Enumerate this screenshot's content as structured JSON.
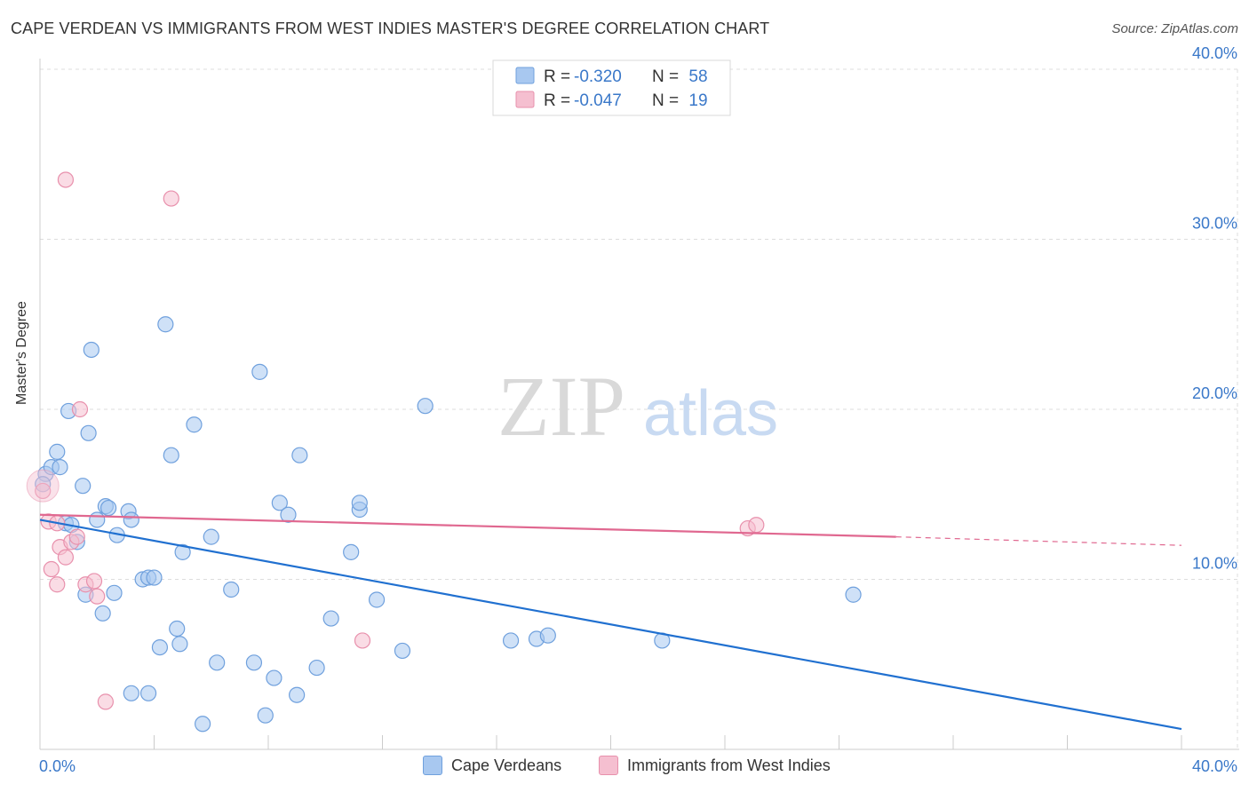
{
  "title": "CAPE VERDEAN VS IMMIGRANTS FROM WEST INDIES MASTER'S DEGREE CORRELATION CHART",
  "source": "Source: ZipAtlas.com",
  "watermark": {
    "zip": "ZIP",
    "atlas": "atlas"
  },
  "colors": {
    "blue_fill": "#a8c8f0",
    "blue_stroke": "#6fa0dd",
    "blue_line": "#2070d0",
    "pink_fill": "#f5bfd0",
    "pink_stroke": "#e890ac",
    "pink_line": "#e06890",
    "value_text": "#3a78c9",
    "axis_text": "#3a78c9",
    "grid": "#dddddd"
  },
  "legend_top": [
    {
      "r_label": "R =",
      "r_value": "-0.320",
      "n_label": "N =",
      "n_value": "58",
      "series": "blue"
    },
    {
      "r_label": "R =",
      "r_value": "-0.047",
      "n_label": "N =",
      "n_value": "19",
      "series": "pink"
    }
  ],
  "legend_bottom": [
    {
      "label": "Cape Verdeans",
      "series": "blue"
    },
    {
      "label": "Immigrants from West Indies",
      "series": "pink"
    }
  ],
  "chart_data": {
    "type": "scatter",
    "title": "CAPE VERDEAN VS IMMIGRANTS FROM WEST INDIES MASTER'S DEGREE CORRELATION CHART",
    "xlabel": "",
    "ylabel": "Master's Degree",
    "xlim": [
      0,
      40
    ],
    "ylim": [
      0,
      40
    ],
    "x_tick_labels": [
      "0.0%",
      "40.0%"
    ],
    "y_tick_labels": [
      "10.0%",
      "20.0%",
      "30.0%",
      "40.0%"
    ],
    "y_ticks": [
      10,
      20,
      30,
      40
    ],
    "grid": true,
    "series": [
      {
        "name": "Cape Verdeans",
        "color": "blue",
        "r": -0.32,
        "n": 58,
        "trend": {
          "x0": 0,
          "y0": 13.5,
          "x1": 40,
          "y1": 1.2
        },
        "points": [
          [
            0.2,
            16.2
          ],
          [
            0.4,
            16.6
          ],
          [
            0.6,
            17.5
          ],
          [
            0.7,
            16.6
          ],
          [
            0.9,
            13.3
          ],
          [
            1.0,
            19.9
          ],
          [
            1.1,
            13.2
          ],
          [
            1.3,
            12.2
          ],
          [
            1.5,
            15.5
          ],
          [
            1.6,
            9.1
          ],
          [
            1.7,
            18.6
          ],
          [
            1.8,
            23.5
          ],
          [
            2.0,
            13.5
          ],
          [
            2.2,
            8.0
          ],
          [
            2.3,
            14.3
          ],
          [
            2.4,
            14.2
          ],
          [
            2.6,
            9.2
          ],
          [
            2.7,
            12.6
          ],
          [
            3.1,
            14.0
          ],
          [
            3.2,
            13.5
          ],
          [
            3.2,
            3.3
          ],
          [
            3.6,
            10.0
          ],
          [
            3.8,
            10.1
          ],
          [
            3.8,
            3.3
          ],
          [
            4.0,
            10.1
          ],
          [
            4.2,
            6.0
          ],
          [
            4.4,
            25.0
          ],
          [
            4.6,
            17.3
          ],
          [
            4.8,
            7.1
          ],
          [
            4.9,
            6.2
          ],
          [
            5.0,
            11.6
          ],
          [
            5.4,
            19.1
          ],
          [
            5.7,
            1.5
          ],
          [
            6.0,
            12.5
          ],
          [
            6.2,
            5.1
          ],
          [
            6.7,
            9.4
          ],
          [
            7.5,
            5.1
          ],
          [
            7.7,
            22.2
          ],
          [
            7.9,
            2.0
          ],
          [
            8.2,
            4.2
          ],
          [
            8.4,
            14.5
          ],
          [
            8.7,
            13.8
          ],
          [
            9.0,
            3.2
          ],
          [
            9.1,
            17.3
          ],
          [
            9.7,
            4.8
          ],
          [
            10.2,
            7.7
          ],
          [
            10.9,
            11.6
          ],
          [
            11.2,
            14.1
          ],
          [
            11.2,
            14.5
          ],
          [
            11.8,
            8.8
          ],
          [
            12.7,
            5.8
          ],
          [
            13.5,
            20.2
          ],
          [
            16.5,
            6.4
          ],
          [
            17.4,
            6.5
          ],
          [
            17.8,
            6.7
          ],
          [
            21.8,
            6.4
          ],
          [
            28.5,
            9.1
          ],
          [
            0.1,
            15.6
          ]
        ]
      },
      {
        "name": "Immigrants from West Indies",
        "color": "pink",
        "r": -0.047,
        "n": 19,
        "trend": {
          "x0": 0,
          "y0": 13.8,
          "x1": 30,
          "y1": 12.5,
          "dash_to_x": 40,
          "dash_to_y": 12.0
        },
        "points": [
          [
            0.1,
            15.2
          ],
          [
            0.3,
            13.4
          ],
          [
            0.4,
            10.6
          ],
          [
            0.6,
            13.3
          ],
          [
            0.6,
            9.7
          ],
          [
            0.7,
            11.9
          ],
          [
            0.9,
            11.3
          ],
          [
            0.9,
            33.5
          ],
          [
            1.1,
            12.2
          ],
          [
            1.3,
            12.5
          ],
          [
            1.4,
            20.0
          ],
          [
            1.6,
            9.7
          ],
          [
            1.9,
            9.9
          ],
          [
            2.0,
            9.0
          ],
          [
            2.3,
            2.8
          ],
          [
            4.6,
            32.4
          ],
          [
            11.3,
            6.4
          ],
          [
            24.8,
            13.0
          ],
          [
            25.1,
            13.2
          ]
        ]
      }
    ]
  }
}
